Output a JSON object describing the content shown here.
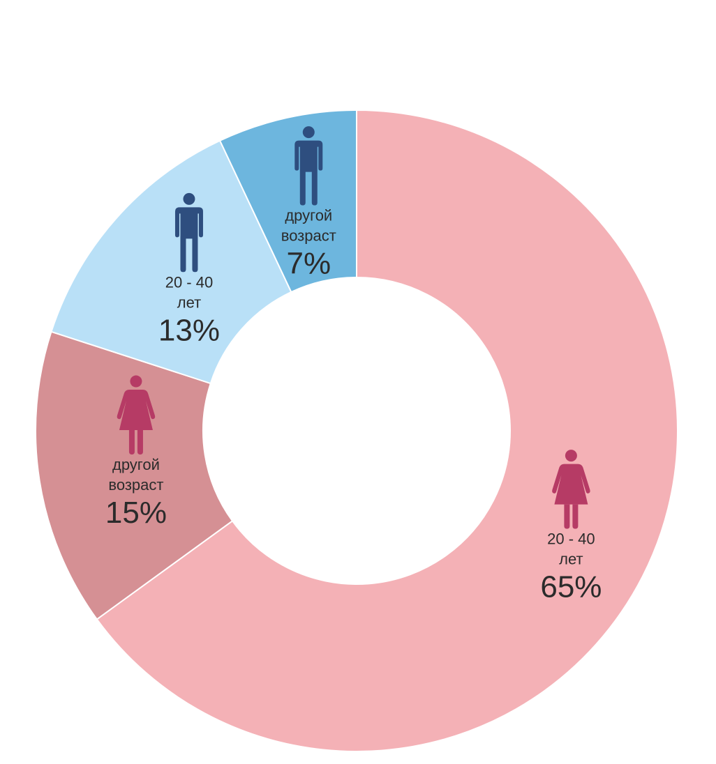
{
  "chart_data": {
    "type": "pie",
    "donut": true,
    "slices": [
      {
        "line1": "20 - 40",
        "line2": "лет",
        "value": 65,
        "label": "65%",
        "gender": "female",
        "color": "#f4b1b6",
        "icon": "female-icon",
        "icon_color": "#b63b65"
      },
      {
        "line1": "другой",
        "line2": "возраст",
        "value": 15,
        "label": "15%",
        "gender": "female",
        "color": "#d59094",
        "icon": "female-icon",
        "icon_color": "#b63b65"
      },
      {
        "line1": "20 - 40",
        "line2": "лет",
        "value": 13,
        "label": "13%",
        "gender": "male",
        "color": "#b9e0f7",
        "icon": "male-icon",
        "icon_color": "#2e4e7f"
      },
      {
        "line1": "другой",
        "line2": "возраст",
        "value": 7,
        "label": "7%",
        "gender": "male",
        "color": "#6db6de",
        "icon": "male-icon",
        "icon_color": "#2e4e7f"
      }
    ]
  }
}
